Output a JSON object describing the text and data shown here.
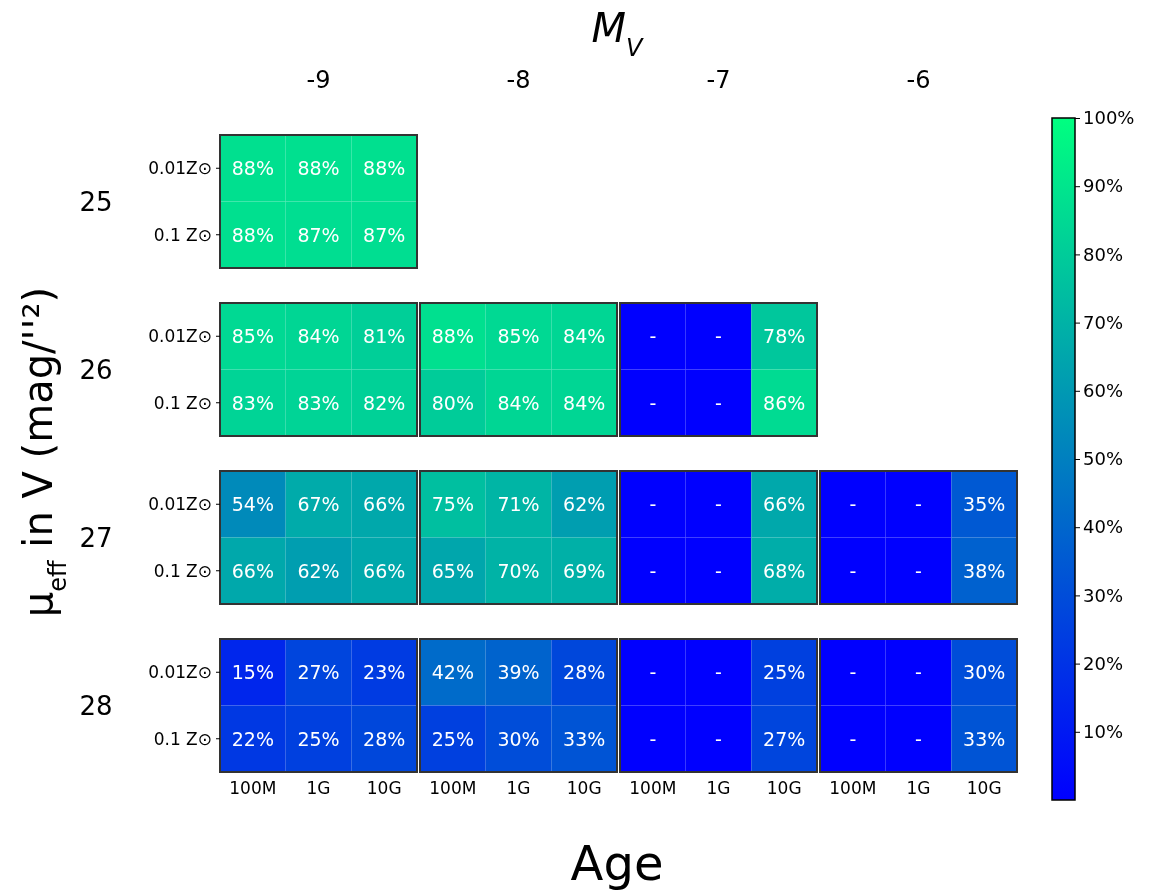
{
  "chart_data": {
    "type": "heatmap",
    "x2label": "M$_{V}$",
    "xlabel": "Age",
    "ylabel": "μ$_{eff}$ in V (mag/''²)",
    "annotations": [
      "-9",
      "-8",
      "-7",
      "-6",
      "25",
      "26",
      "27",
      "28"
    ],
    "categories": [
      "100M",
      "1G",
      "10G",
      "100M",
      "1G",
      "10G",
      "100M",
      "1G",
      "10G",
      "100M",
      "1G",
      "10G"
    ],
    "y_categories": [
      "0.01Z⊙",
      "0.1 Z⊙",
      "0.01Z⊙",
      "0.1 Z⊙",
      "0.01Z⊙",
      "0.1 Z⊙",
      "0.01Z⊙",
      "0.1 Z⊙"
    ],
    "cells": [
      [
        88,
        88,
        88,
        null,
        null,
        null,
        null,
        null,
        null,
        null,
        null,
        null
      ],
      [
        88,
        87,
        87,
        null,
        null,
        null,
        null,
        null,
        null,
        null,
        null,
        null
      ],
      [
        85,
        84,
        81,
        88,
        85,
        84,
        0,
        0,
        78,
        null,
        null,
        null
      ],
      [
        83,
        83,
        82,
        80,
        84,
        84,
        0,
        0,
        86,
        null,
        null,
        null
      ],
      [
        54,
        67,
        66,
        75,
        71,
        62,
        0,
        0,
        66,
        0,
        0,
        35
      ],
      [
        66,
        62,
        66,
        65,
        70,
        69,
        0,
        0,
        68,
        0,
        0,
        38
      ],
      [
        15,
        27,
        23,
        42,
        39,
        28,
        0,
        0,
        25,
        0,
        0,
        30
      ],
      [
        22,
        25,
        28,
        25,
        30,
        33,
        0,
        0,
        27,
        0,
        0,
        33
      ]
    ],
    "cell_labels": [
      [
        "88%",
        "88%",
        "88%",
        null,
        null,
        null,
        null,
        null,
        null,
        null,
        null,
        null
      ],
      [
        "88%",
        "87%",
        "87%",
        null,
        null,
        null,
        null,
        null,
        null,
        null,
        null,
        null
      ],
      [
        "85%",
        "84%",
        "81%",
        "88%",
        "85%",
        "84%",
        "-",
        "-",
        "78%",
        null,
        null,
        null
      ],
      [
        "83%",
        "83%",
        "82%",
        "80%",
        "84%",
        "84%",
        "-",
        "-",
        "86%",
        null,
        null,
        null
      ],
      [
        "54%",
        "67%",
        "66%",
        "75%",
        "71%",
        "62%",
        "-",
        "-",
        "66%",
        "-",
        "-",
        "35%"
      ],
      [
        "66%",
        "62%",
        "66%",
        "65%",
        "70%",
        "69%",
        "-",
        "-",
        "68%",
        "-",
        "-",
        "38%"
      ],
      [
        "15%",
        "27%",
        "23%",
        "42%",
        "39%",
        "28%",
        "-",
        "-",
        "25%",
        "-",
        "-",
        "30%"
      ],
      [
        "22%",
        "25%",
        "28%",
        "25%",
        "30%",
        "33%",
        "-",
        "-",
        "27%",
        "-",
        "-",
        "33%"
      ]
    ],
    "clim": [
      0,
      100
    ],
    "cticks": [
      {
        "value": 10,
        "label": "10%"
      },
      {
        "value": 20,
        "label": "20%"
      },
      {
        "value": 30,
        "label": "30%"
      },
      {
        "value": 40,
        "label": "40%"
      },
      {
        "value": 50,
        "label": "50%"
      },
      {
        "value": 60,
        "label": "60%"
      },
      {
        "value": 70,
        "label": "70%"
      },
      {
        "value": 80,
        "label": "80%"
      },
      {
        "value": 90,
        "label": "90%"
      },
      {
        "value": 100,
        "label": "100%"
      }
    ]
  }
}
